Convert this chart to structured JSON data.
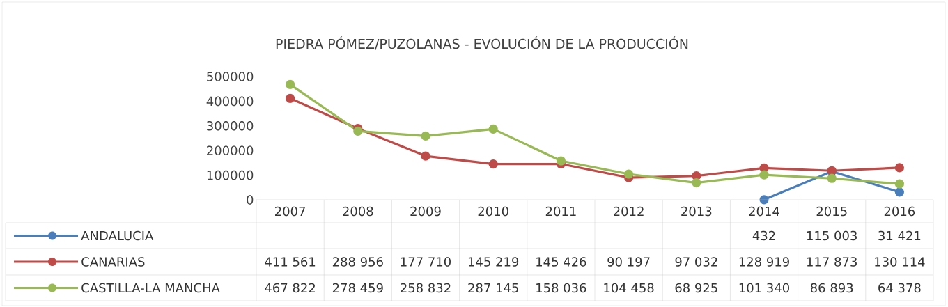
{
  "chart_data": {
    "type": "line",
    "title": "PIEDRA PÓMEZ/PUZOLANAS - EVOLUCIÓN DE LA PRODUCCIÓN",
    "categories": [
      "2007",
      "2008",
      "2009",
      "2010",
      "2011",
      "2012",
      "2013",
      "2014",
      "2015",
      "2016"
    ],
    "ylim": [
      0,
      500000
    ],
    "yticks": [
      0,
      100000,
      200000,
      300000,
      400000,
      500000
    ],
    "marker": "circle",
    "legend": "bottom",
    "series": [
      {
        "name": "ANDALUCIA",
        "color": "#4a7ebb",
        "values": [
          null,
          null,
          null,
          null,
          null,
          null,
          null,
          432,
          115003,
          31421
        ],
        "value_labels": [
          null,
          null,
          null,
          null,
          null,
          null,
          null,
          "432",
          "115 003",
          "31 421"
        ]
      },
      {
        "name": "CANARIAS",
        "color": "#be4b48",
        "values": [
          411561,
          288956,
          177710,
          145219,
          145426,
          90197,
          97032,
          128919,
          117873,
          130114
        ],
        "value_labels": [
          "411 561",
          "288 956",
          "177 710",
          "145 219",
          "145 426",
          "90 197",
          "97 032",
          "128 919",
          "117 873",
          "130 114"
        ]
      },
      {
        "name": "CASTILLA-LA MANCHA",
        "color": "#98b954",
        "values": [
          467822,
          278459,
          258832,
          287145,
          158036,
          104458,
          68925,
          101340,
          86893,
          64378
        ],
        "value_labels": [
          "467 822",
          "278 459",
          "258 832",
          "287 145",
          "158 036",
          "104 458",
          "68 925",
          "101 340",
          "86 893",
          "64 378"
        ]
      }
    ]
  }
}
